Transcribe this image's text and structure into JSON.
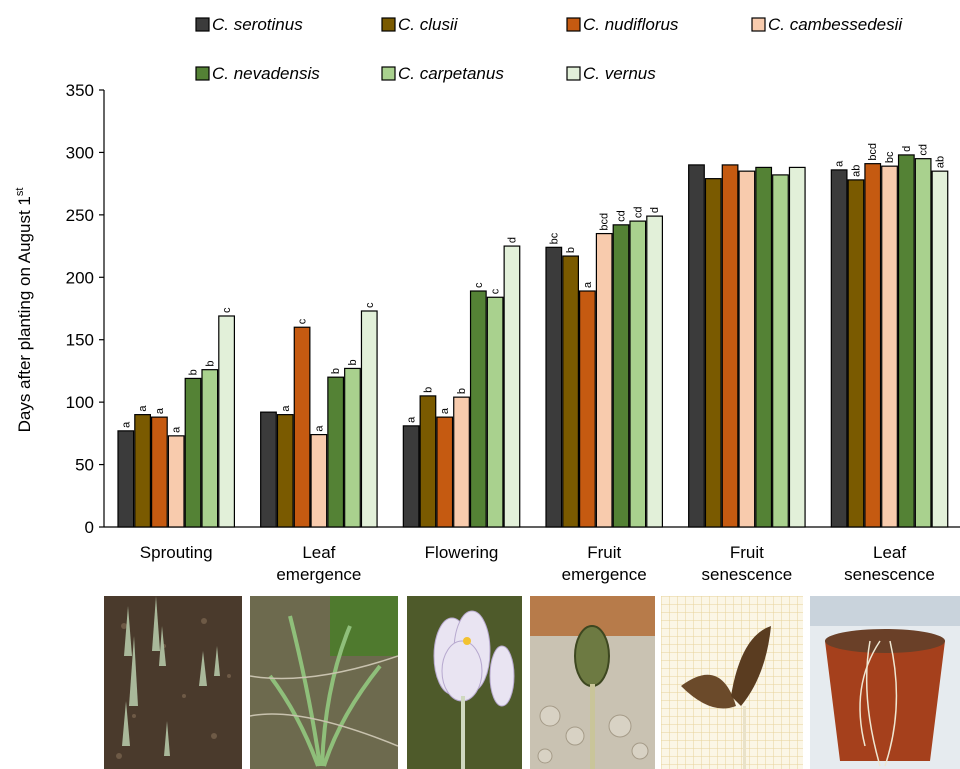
{
  "chart_data": {
    "type": "bar",
    "ylabel": "Days after planting on August 1",
    "ylabel_sup": "st",
    "ylim": [
      0,
      350
    ],
    "yticks": [
      0,
      50,
      100,
      150,
      200,
      250,
      300,
      350
    ],
    "categories": [
      "Sprouting",
      "Leaf emergence",
      "Flowering",
      "Fruit emergence",
      "Fruit senescence",
      "Leaf senescence"
    ],
    "category_lines": [
      [
        "Sprouting"
      ],
      [
        "Leaf",
        "emergence"
      ],
      [
        "Flowering"
      ],
      [
        "Fruit",
        "emergence"
      ],
      [
        "Fruit",
        "senescence"
      ],
      [
        "Leaf",
        "senescence"
      ]
    ],
    "grid": false,
    "legend_position": "top",
    "series": [
      {
        "name": "C. serotinus",
        "color": "#3b3b3b",
        "values": [
          77,
          92,
          81,
          224,
          290,
          286
        ],
        "labels": [
          "a",
          "",
          "a",
          "bc",
          "",
          "a"
        ]
      },
      {
        "name": "C. clusii",
        "color": "#7a5a00",
        "values": [
          90,
          90,
          105,
          217,
          279,
          278
        ],
        "labels": [
          "a",
          "a",
          "b",
          "b",
          "",
          "ab"
        ]
      },
      {
        "name": "C. nudiflorus",
        "color": "#c55a11",
        "values": [
          88,
          160,
          88,
          189,
          290,
          291
        ],
        "labels": [
          "a",
          "c",
          "a",
          "a",
          "",
          "bcd"
        ]
      },
      {
        "name": "C. cambessedesii",
        "color": "#f8cbad",
        "values": [
          73,
          74,
          104,
          235,
          285,
          289
        ],
        "labels": [
          "a",
          "a",
          "b",
          "bcd",
          "",
          "bc"
        ]
      },
      {
        "name": "C. nevadensis",
        "color": "#548235",
        "values": [
          119,
          120,
          189,
          242,
          288,
          298
        ],
        "labels": [
          "b",
          "b",
          "c",
          "cd",
          "",
          "d"
        ]
      },
      {
        "name": "C. carpetanus",
        "color": "#a9d18e",
        "values": [
          126,
          127,
          184,
          245,
          282,
          295
        ],
        "labels": [
          "b",
          "b",
          "c",
          "cd",
          "",
          "cd"
        ]
      },
      {
        "name": "C. vernus",
        "color": "#e2f0d9",
        "values": [
          169,
          173,
          225,
          249,
          288,
          285
        ],
        "labels": [
          "c",
          "c",
          "d",
          "d",
          "",
          "ab"
        ]
      }
    ]
  }
}
